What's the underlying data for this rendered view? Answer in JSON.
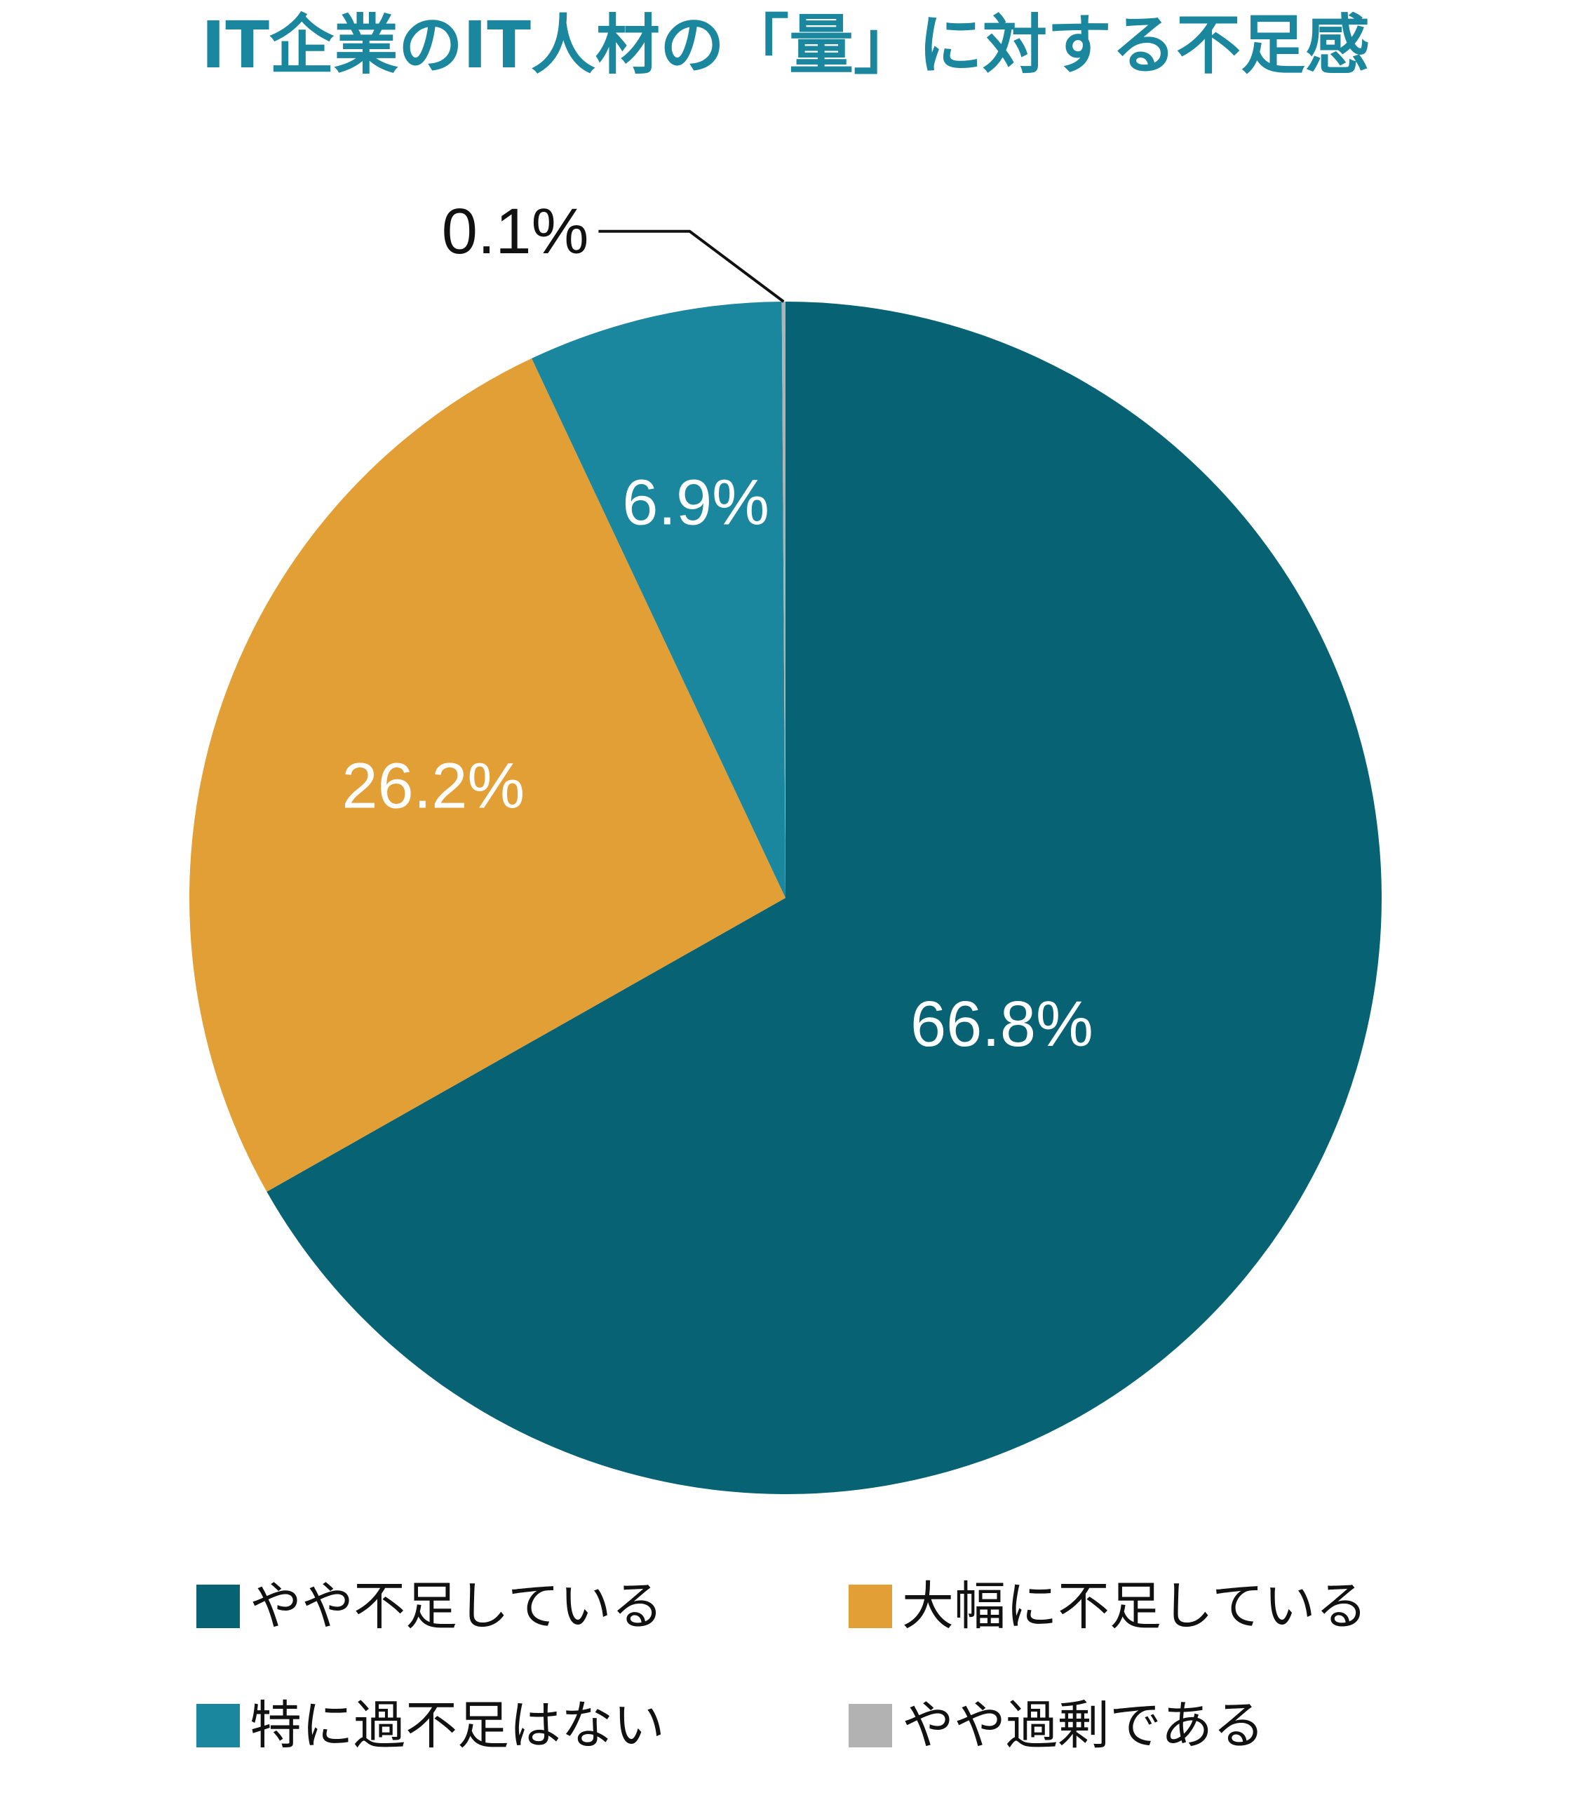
{
  "chart_data": {
    "type": "pie",
    "title": "IT企業のIT人材の「量」に対する不足感",
    "start_angle_deg": 0,
    "direction": "clockwise",
    "slices": [
      {
        "label": "やや不足している",
        "value": 66.8,
        "display": "66.8%",
        "color": "#076373",
        "label_color": "#ffffff"
      },
      {
        "label": "大幅に不足している",
        "value": 26.2,
        "display": "26.2%",
        "color": "#e19f35",
        "label_color": "#ffffff"
      },
      {
        "label": "特に過不足はない",
        "value": 6.9,
        "display": "6.9%",
        "color": "#1a879e",
        "label_color": "#ffffff"
      },
      {
        "label": "やや過剰である",
        "value": 0.1,
        "display": "0.1%",
        "color": "#b2b2b2",
        "label_color": "#111111",
        "callout": true
      }
    ],
    "legend": {
      "position": "bottom",
      "columns": 2
    }
  },
  "colors": {
    "title": "#1a879e"
  }
}
